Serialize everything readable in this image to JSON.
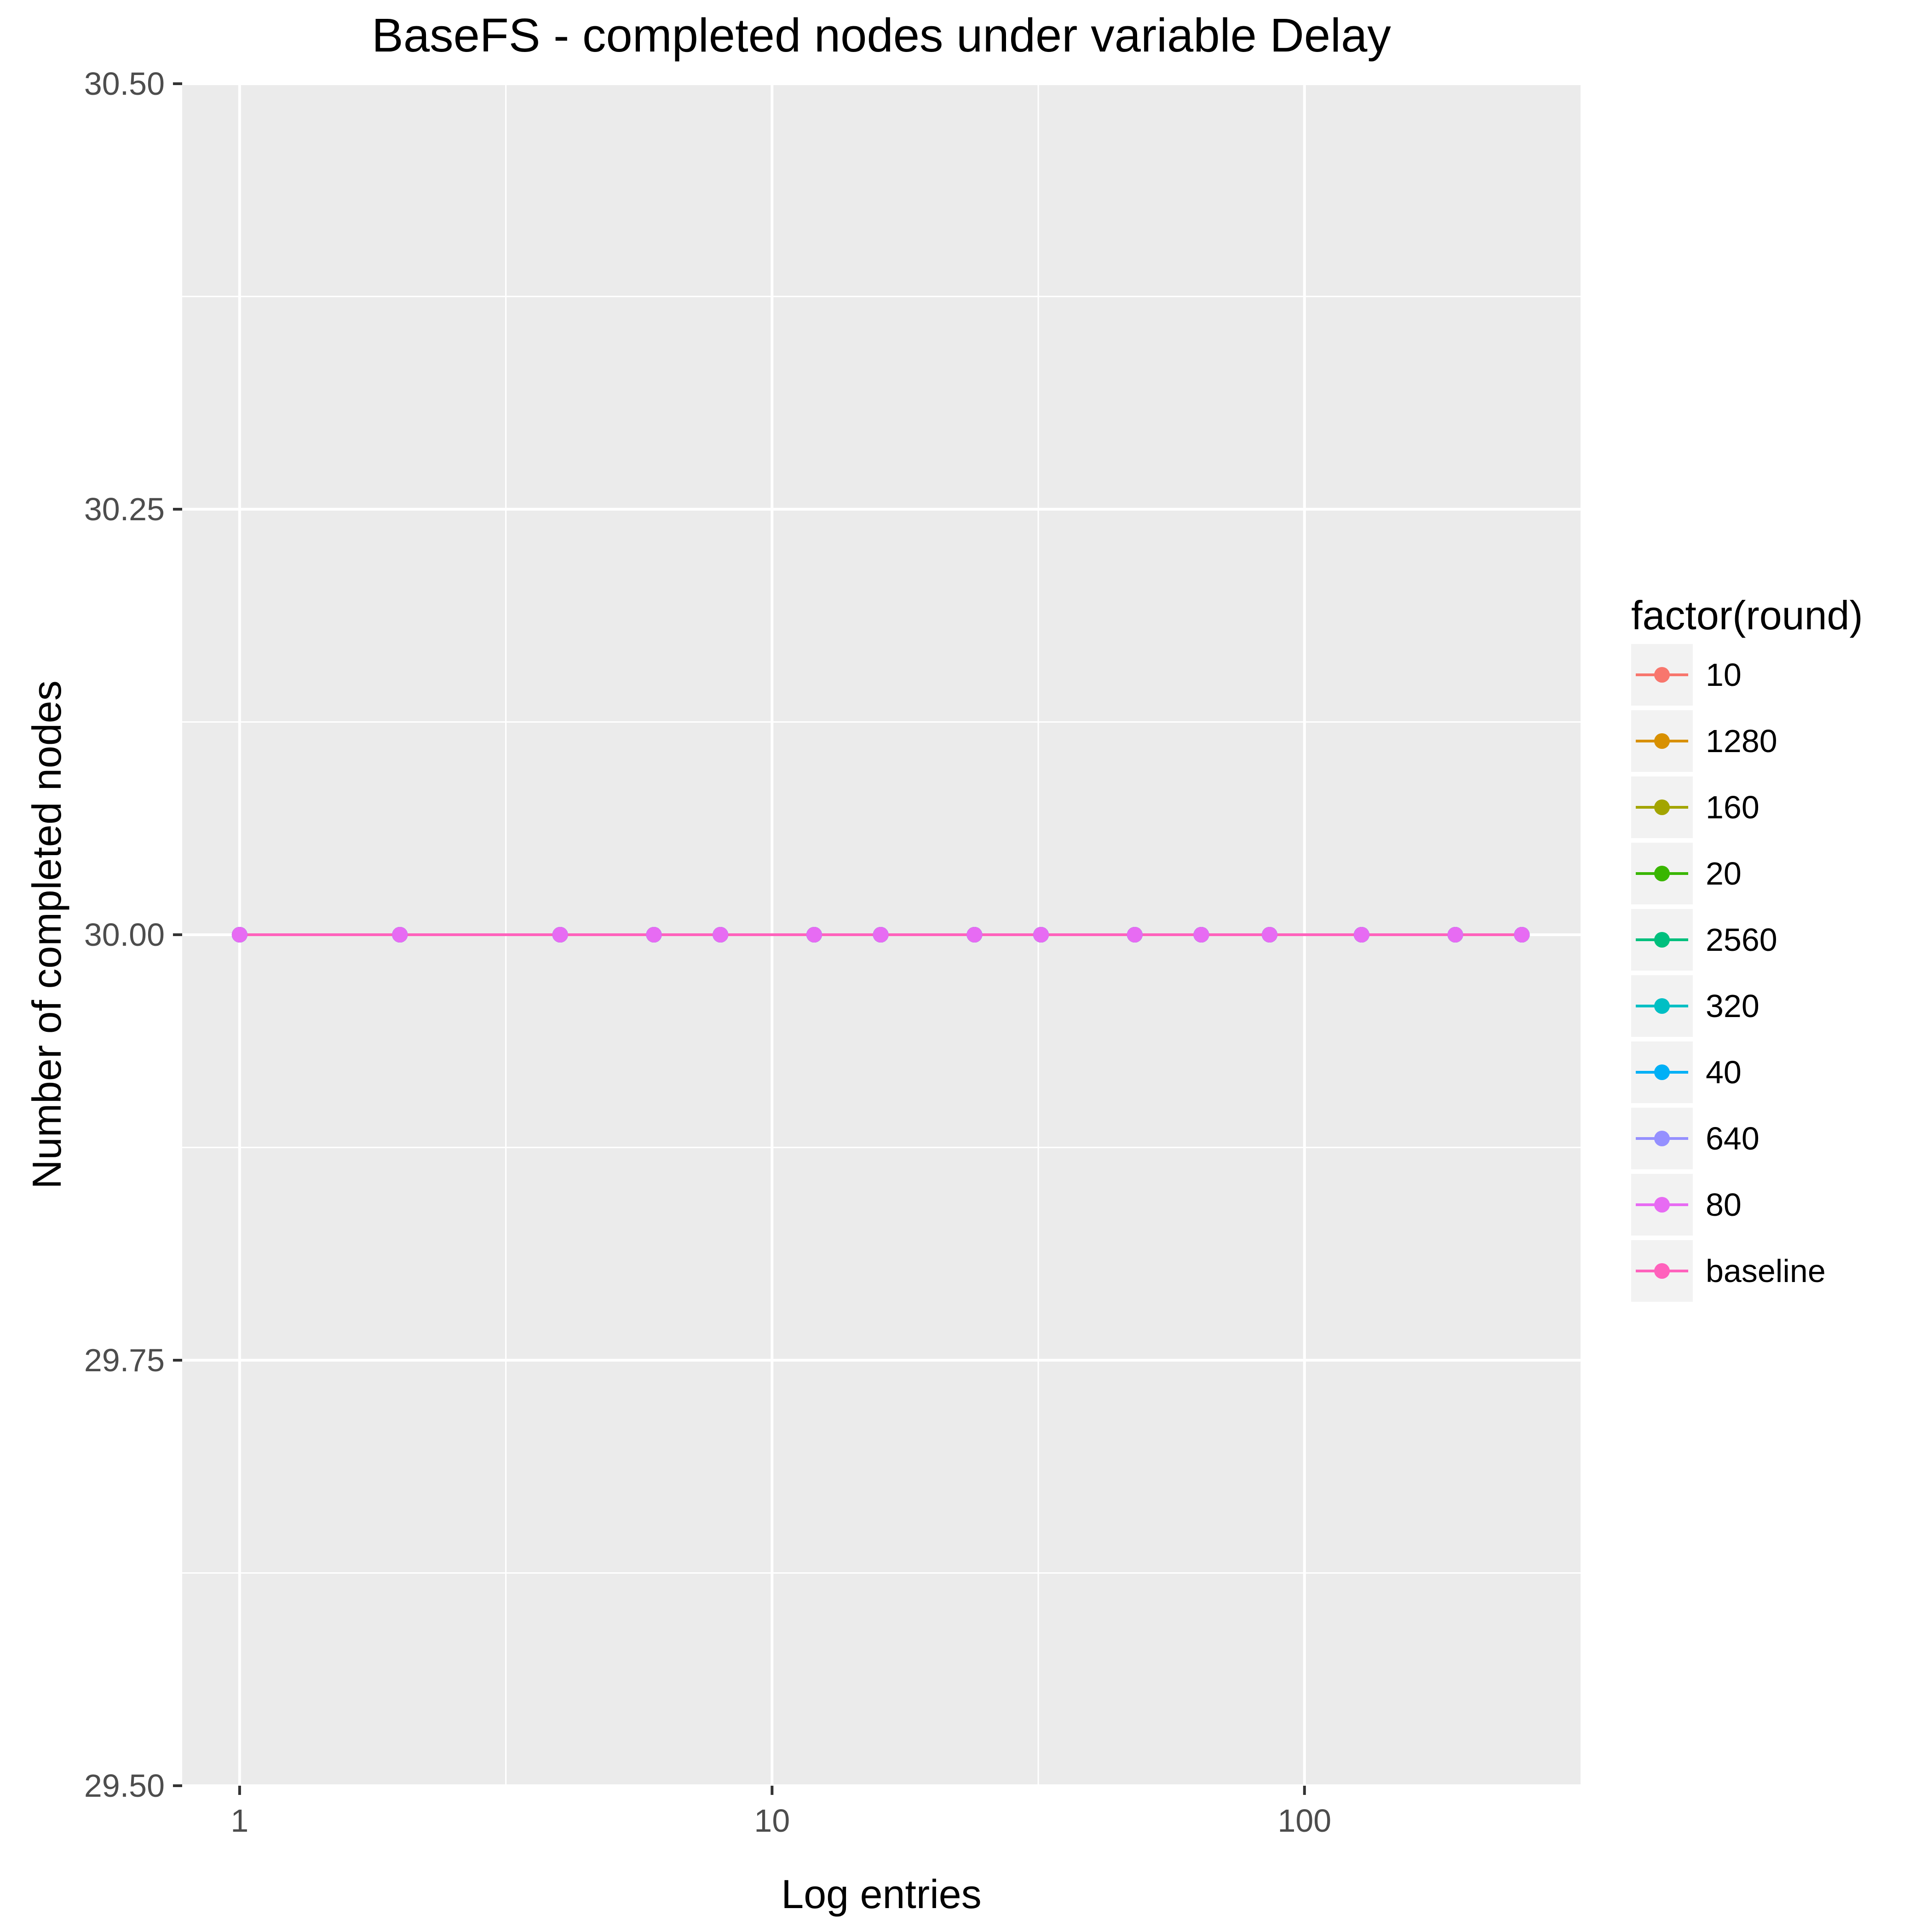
{
  "chart_data": {
    "type": "line",
    "title": "BaseFS - completed nodes under variable Delay",
    "xlabel": "Log entries",
    "ylabel": "Number of completed nodes",
    "x_scale": "log10",
    "xlim": [
      0.78,
      330
    ],
    "ylim": [
      29.5,
      30.5
    ],
    "x_ticks": [
      1,
      10,
      100
    ],
    "x_tick_labels": [
      "1",
      "10",
      "100"
    ],
    "y_ticks": [
      29.5,
      29.75,
      30.0,
      30.25,
      30.5
    ],
    "y_tick_labels": [
      "29.50",
      "29.75",
      "30.00",
      "30.25",
      "30.50"
    ],
    "grid": true,
    "legend_title": "factor(round)",
    "legend_position": "right",
    "x": [
      1,
      2,
      4,
      6,
      8,
      12,
      16,
      24,
      32,
      48,
      64,
      86,
      128,
      192,
      256
    ],
    "series": [
      {
        "name": "10",
        "color": "#F8766D",
        "values": [
          30,
          30,
          30,
          30,
          30,
          30,
          30,
          30,
          30,
          30,
          30,
          30,
          30,
          30,
          30
        ]
      },
      {
        "name": "1280",
        "color": "#D89000",
        "values": [
          30,
          30,
          30,
          30,
          30,
          30,
          30,
          30,
          30,
          30,
          30,
          30,
          30,
          30,
          30
        ]
      },
      {
        "name": "160",
        "color": "#A3A500",
        "values": [
          30,
          30,
          30,
          30,
          30,
          30,
          30,
          30,
          30,
          30,
          30,
          30,
          30,
          30,
          30
        ]
      },
      {
        "name": "20",
        "color": "#39B600",
        "values": [
          30,
          30,
          30,
          30,
          30,
          30,
          30,
          30,
          30,
          30,
          30,
          30,
          30,
          30,
          30
        ]
      },
      {
        "name": "2560",
        "color": "#00BF7D",
        "values": [
          30,
          30,
          30,
          30,
          30,
          30,
          30,
          30,
          30,
          30,
          30,
          30,
          30,
          30,
          30
        ]
      },
      {
        "name": "320",
        "color": "#00BFC4",
        "values": [
          30,
          30,
          30,
          30,
          30,
          30,
          30,
          30,
          30,
          30,
          30,
          30,
          30,
          30,
          30
        ]
      },
      {
        "name": "40",
        "color": "#00B0F6",
        "values": [
          30,
          30,
          30,
          30,
          30,
          30,
          30,
          30,
          30,
          30,
          30,
          30,
          30,
          30,
          30
        ]
      },
      {
        "name": "640",
        "color": "#9590FF",
        "values": [
          30,
          30,
          30,
          30,
          30,
          30,
          30,
          30,
          30,
          30,
          30,
          30,
          30,
          30,
          30
        ]
      },
      {
        "name": "80",
        "color": "#E76BF3",
        "values": [
          30,
          30,
          30,
          30,
          30,
          30,
          30,
          30,
          30,
          30,
          30,
          30,
          30,
          30,
          30
        ]
      },
      {
        "name": "baseline",
        "color": "#FF62BC",
        "values": [
          30,
          30,
          30,
          30,
          30,
          30,
          30,
          30,
          30,
          30,
          30,
          30,
          30,
          30,
          30
        ]
      }
    ]
  }
}
